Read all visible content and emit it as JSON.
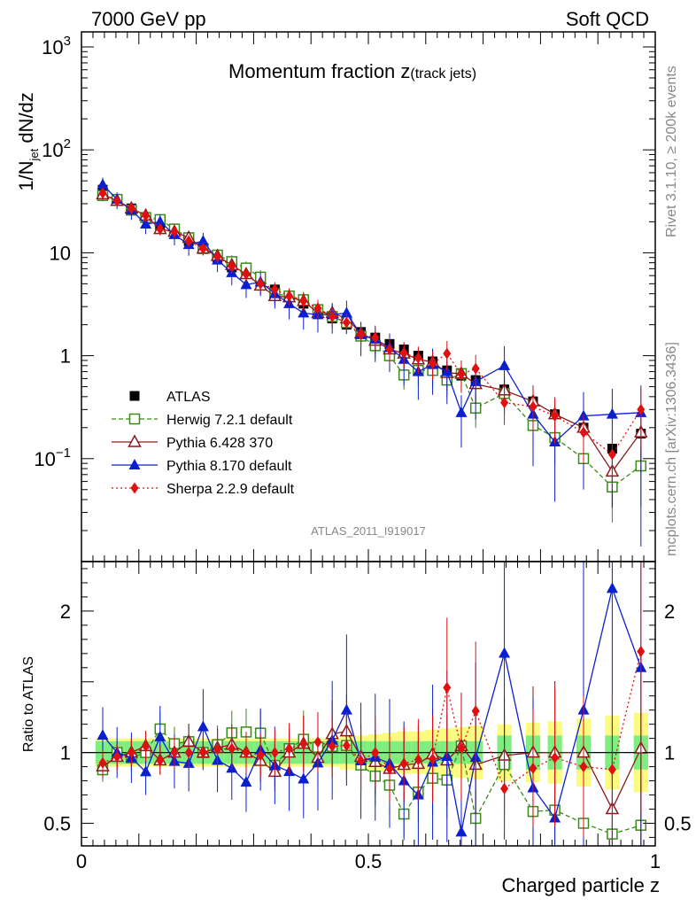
{
  "chart_data": {
    "type": "line",
    "header_left": "7000 GeV pp",
    "header_right": "Soft QCD",
    "title_main": "Momentum fraction ",
    "title_z": "z",
    "title_sub": "(track jets)",
    "ylabel_parts": [
      "1/N",
      "jet",
      " dN/dz"
    ],
    "xlabel": "Charged particle z",
    "ratio_ylabel": "Ratio to ATLAS",
    "analysis_id": "ATLAS_2011_I919017",
    "side_text_top": "Rivet 3.1.10, ≥ 200k events",
    "side_text_bottom": "mcplots.cern.ch [arXiv:1306.3436]",
    "xlim": [
      0,
      1
    ],
    "ylim_main": [
      0.01,
      1400
    ],
    "ylim_ratio": [
      0.34,
      2.35
    ],
    "x_ticks": [
      {
        "value": 0,
        "label": "0"
      },
      {
        "value": 0.5,
        "label": "0.5"
      },
      {
        "value": 1,
        "label": "1"
      }
    ],
    "y_ticks_main": [
      {
        "value": 1000,
        "base": "10",
        "exp": "3"
      },
      {
        "value": 100,
        "base": "10",
        "exp": "2"
      },
      {
        "value": 10,
        "base": "10",
        "exp": ""
      },
      {
        "value": 1,
        "base": "1",
        "exp": ""
      },
      {
        "value": 0.1,
        "base": "10",
        "exp": "−1"
      }
    ],
    "y_ticks_ratio": [
      {
        "value": 0.5,
        "label": "0.5"
      },
      {
        "value": 1,
        "label": "1"
      },
      {
        "value": 2,
        "label": "2"
      }
    ],
    "x": [
      0.037,
      0.062,
      0.087,
      0.112,
      0.137,
      0.162,
      0.187,
      0.212,
      0.237,
      0.262,
      0.287,
      0.312,
      0.337,
      0.362,
      0.387,
      0.412,
      0.437,
      0.462,
      0.487,
      0.512,
      0.537,
      0.562,
      0.587,
      0.612,
      0.637,
      0.662,
      0.687,
      0.737,
      0.787,
      0.825,
      0.875,
      0.925,
      0.975
    ],
    "series": [
      {
        "name": "ATLAS",
        "label": "ATLAS",
        "color": "#000000",
        "marker": "square-filled",
        "values": [
          41,
          33,
          27,
          22,
          18,
          16,
          13,
          11,
          9.0,
          7.2,
          6.2,
          5.1,
          4.4,
          3.7,
          3.2,
          2.7,
          2.3,
          2.0,
          1.7,
          1.5,
          1.3,
          1.15,
          1.0,
          0.88,
          0.72,
          0.64,
          0.58,
          0.47,
          0.36,
          0.27,
          0.2,
          0.125,
          0.175
        ]
      },
      {
        "name": "Herwig 7.2.1 default",
        "label": "Herwig 7.2.1 default",
        "color": "#3a8a1a",
        "marker": "square-open",
        "dash": "5,3",
        "values": [
          36,
          33,
          26,
          22,
          21,
          17,
          14,
          11,
          9.5,
          8.2,
          7.1,
          5.8,
          4.0,
          3.8,
          3.5,
          2.8,
          2.4,
          2.1,
          1.55,
          1.25,
          1.0,
          0.65,
          0.72,
          0.72,
          0.58,
          0.67,
          0.31,
          0.43,
          0.21,
          0.16,
          0.1,
          0.053,
          0.085
        ]
      },
      {
        "name": "Pythia 6.428 370",
        "label": "Pythia 6.428 370",
        "color": "#8b1a1a",
        "marker": "triangle-open",
        "dash": "",
        "values": [
          37,
          32,
          27,
          23,
          17,
          16,
          14,
          11,
          9.3,
          7.6,
          6.2,
          4.8,
          3.8,
          3.7,
          3.4,
          2.6,
          2.6,
          2.3,
          1.65,
          1.4,
          1.15,
          1.05,
          0.92,
          0.87,
          0.68,
          0.67,
          0.53,
          0.46,
          0.36,
          0.27,
          0.2,
          0.075,
          0.18
        ]
      },
      {
        "name": "Pythia 8.170 default",
        "label": "Pythia 8.170 default",
        "color": "#0a1fd0",
        "marker": "triangle-filled",
        "dash": "",
        "values": [
          46,
          33,
          26,
          19,
          20,
          15,
          12,
          13,
          8.5,
          6.4,
          4.9,
          5.2,
          4.0,
          3.2,
          2.6,
          2.5,
          2.5,
          2.6,
          1.6,
          1.45,
          1.2,
          0.92,
          0.7,
          0.82,
          0.7,
          0.28,
          0.56,
          0.8,
          0.27,
          0.145,
          0.26,
          0.27,
          0.28
        ]
      },
      {
        "name": "Sherpa 2.2.9 default",
        "label": "Sherpa 2.2.9 default",
        "color": "#e01010",
        "marker": "diamond-filled",
        "dash": "2,3",
        "values": [
          38,
          32,
          27,
          23,
          17,
          16,
          13,
          11,
          9.2,
          7.4,
          6.2,
          5.0,
          4.4,
          3.8,
          3.4,
          2.9,
          2.4,
          2.1,
          1.6,
          1.5,
          1.15,
          1.06,
          0.95,
          0.84,
          1.05,
          0.66,
          0.75,
          0.35,
          0.32,
          0.26,
          0.18,
          0.11,
          0.3
        ]
      }
    ],
    "ratio_band_inner": [
      0.08,
      0.08,
      0.08,
      0.08,
      0.08,
      0.08,
      0.08,
      0.08,
      0.08,
      0.08,
      0.08,
      0.08,
      0.08,
      0.08,
      0.08,
      0.08,
      0.08,
      0.08,
      0.08,
      0.08,
      0.08,
      0.08,
      0.08,
      0.08,
      0.08,
      0.08,
      0.08,
      0.12,
      0.12,
      0.12,
      0.12,
      0.12,
      0.12
    ],
    "ratio_band_outer": [
      0.1,
      0.1,
      0.1,
      0.1,
      0.1,
      0.1,
      0.1,
      0.1,
      0.1,
      0.1,
      0.1,
      0.1,
      0.1,
      0.1,
      0.1,
      0.1,
      0.1,
      0.12,
      0.12,
      0.13,
      0.14,
      0.15,
      0.15,
      0.16,
      0.17,
      0.18,
      0.19,
      0.2,
      0.21,
      0.22,
      0.24,
      0.26,
      0.28
    ],
    "band_colors": {
      "inner": "#7fed7f",
      "outer": "#fbfb7f"
    }
  }
}
